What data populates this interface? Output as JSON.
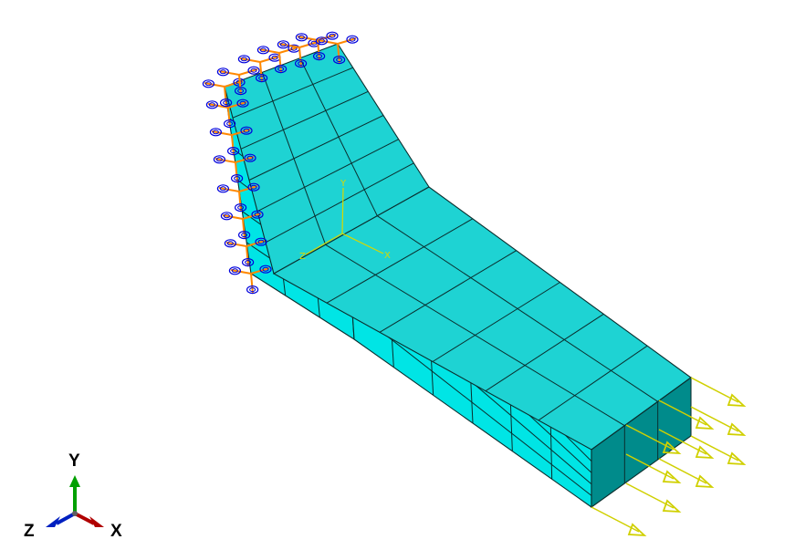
{
  "viewport": {
    "background": "#ffffff",
    "colors": {
      "mesh_top": "#1ed3d3",
      "mesh_side": "#00e5e5",
      "mesh_end": "#008b8b",
      "edge": "#0a2e2e",
      "boundary_cone": "#0000dd",
      "boundary_arrow": "#ff8800",
      "load_arrow": "#d0d000",
      "triad_y": "#00a000",
      "triad_x": "#b00000",
      "triad_z": "#0020c0"
    }
  },
  "model": {
    "part": "bent-block-mesh",
    "boundary_condition_icon": "fixed-support-cone-icon",
    "load_icon": "pressure-arrow-icon"
  },
  "csys": {
    "x": "X",
    "y": "Y",
    "z": "Z"
  },
  "triad": {
    "x": "X",
    "y": "Y",
    "z": "Z"
  }
}
